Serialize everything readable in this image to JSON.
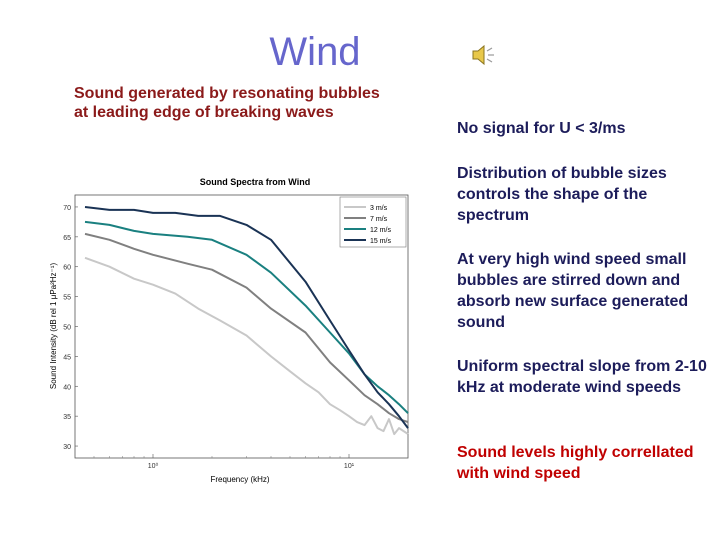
{
  "slide": {
    "title": "Wind",
    "subtitle_line1": "Sound generated by resonating bubbles",
    "subtitle_line2": "at leading edge of breaking waves",
    "bullets": [
      "No signal for U <  3/ms",
      "Distribution of bubble sizes controls the shape of the spectrum",
      "At very high wind speed small bubbles are stirred down and absorb new surface generated sound",
      "Uniform spectral slope from 2-10 kHz at moderate wind speeds",
      "Sound levels highly correllated with wind speed"
    ],
    "colors": {
      "title": "#6666cc",
      "subtitle": "#8b1a1a",
      "bullet": "#1c1c5a",
      "bullet_highlight": "#c00000"
    },
    "icon": "speaker-icon"
  },
  "chart_data": {
    "type": "line",
    "title": "Sound Spectra from Wind",
    "xlabel": "Frequency (kHz)",
    "ylabel": "Sound Intensity (dB rel 1 μPa²Hz⁻¹)",
    "x_scale": "log",
    "xlim": [
      0.4,
      20
    ],
    "ylim": [
      28,
      72
    ],
    "y_ticks": [
      30,
      35,
      40,
      45,
      50,
      55,
      60,
      65,
      70
    ],
    "x_ticks": [
      {
        "value": 1,
        "label": "10⁰"
      },
      {
        "value": 10,
        "label": "10¹"
      }
    ],
    "grid": false,
    "legend_position": "top-right",
    "series": [
      {
        "name": "3 m/s",
        "color": "#c8c8c8",
        "points": [
          [
            0.45,
            61.5
          ],
          [
            0.6,
            60
          ],
          [
            0.8,
            58
          ],
          [
            1,
            57
          ],
          [
            1.3,
            55.5
          ],
          [
            1.7,
            53
          ],
          [
            2.2,
            51
          ],
          [
            3,
            48.5
          ],
          [
            4,
            45
          ],
          [
            5,
            42.5
          ],
          [
            6,
            40.5
          ],
          [
            7,
            39
          ],
          [
            8,
            37
          ],
          [
            9,
            36
          ],
          [
            10,
            35
          ],
          [
            11,
            34
          ],
          [
            12,
            33.5
          ],
          [
            13,
            35
          ],
          [
            14,
            33
          ],
          [
            15,
            32.5
          ],
          [
            16,
            34.5
          ],
          [
            17,
            32
          ],
          [
            18,
            33
          ],
          [
            19,
            32.5
          ],
          [
            20,
            32
          ]
        ]
      },
      {
        "name": "7 m/s",
        "color": "#808080",
        "points": [
          [
            0.45,
            65.5
          ],
          [
            0.6,
            64.5
          ],
          [
            0.8,
            63
          ],
          [
            1,
            62
          ],
          [
            1.5,
            60.5
          ],
          [
            2,
            59.5
          ],
          [
            3,
            56.5
          ],
          [
            4,
            53
          ],
          [
            6,
            49
          ],
          [
            8,
            44
          ],
          [
            10,
            41
          ],
          [
            12,
            38.5
          ],
          [
            14,
            37
          ],
          [
            16,
            35.5
          ],
          [
            18,
            34.5
          ],
          [
            20,
            34
          ]
        ]
      },
      {
        "name": "12 m/s",
        "color": "#1a8080",
        "points": [
          [
            0.45,
            67.5
          ],
          [
            0.6,
            67
          ],
          [
            0.8,
            66
          ],
          [
            1,
            65.5
          ],
          [
            1.5,
            65
          ],
          [
            2,
            64.5
          ],
          [
            3,
            62
          ],
          [
            4,
            59
          ],
          [
            6,
            53.5
          ],
          [
            8,
            49
          ],
          [
            10,
            45.5
          ],
          [
            12,
            42
          ],
          [
            14,
            40
          ],
          [
            16,
            38.5
          ],
          [
            18,
            37
          ],
          [
            20,
            35.5
          ]
        ]
      },
      {
        "name": "15 m/s",
        "color": "#1a3355",
        "points": [
          [
            0.45,
            70
          ],
          [
            0.6,
            69.5
          ],
          [
            0.8,
            69.5
          ],
          [
            1,
            69
          ],
          [
            1.3,
            69
          ],
          [
            1.7,
            68.5
          ],
          [
            2.2,
            68.5
          ],
          [
            3,
            67
          ],
          [
            4,
            64.5
          ],
          [
            6,
            57.5
          ],
          [
            8,
            51
          ],
          [
            10,
            46
          ],
          [
            12,
            42
          ],
          [
            14,
            39
          ],
          [
            16,
            37
          ],
          [
            18,
            35
          ],
          [
            20,
            33
          ]
        ]
      }
    ]
  }
}
